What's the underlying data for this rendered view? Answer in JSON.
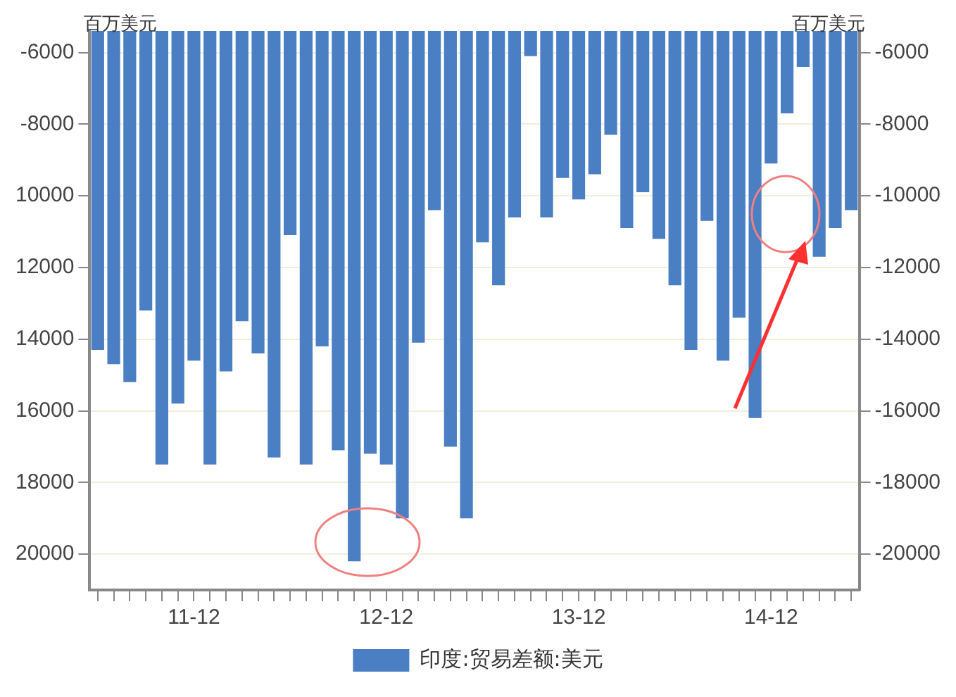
{
  "chart_data": {
    "type": "bar",
    "ylabel": "百万美元",
    "y2label": "百万美元",
    "categories": [
      null,
      null,
      null,
      null,
      null,
      null,
      "11-12",
      null,
      null,
      null,
      null,
      null,
      null,
      null,
      null,
      null,
      null,
      null,
      "12-12",
      null,
      null,
      null,
      null,
      null,
      null,
      null,
      null,
      null,
      null,
      null,
      "13-12",
      null,
      null,
      null,
      null,
      null,
      null,
      null,
      null,
      null,
      null,
      null,
      "14-12",
      null,
      null,
      null,
      null,
      null
    ],
    "series": [
      {
        "name": "印度:贸易差额:美元",
        "color": "#4a7fc4",
        "values": [
          -14300,
          -14700,
          -15200,
          -13200,
          -17500,
          -15800,
          -14600,
          -17500,
          -14900,
          -13500,
          -14400,
          -17300,
          -11100,
          -17500,
          -14200,
          -17100,
          -20200,
          -17200,
          -17500,
          -19000,
          -14100,
          -10400,
          -17000,
          -19000,
          -11300,
          -12500,
          -10600,
          -6100,
          -10600,
          -9500,
          -10100,
          -9400,
          -8300,
          -10900,
          -9900,
          -11200,
          -12500,
          -14300,
          -10700,
          -14600,
          -13400,
          -16200,
          -9100,
          -7700,
          -6400,
          -11700,
          -10900,
          -10400
        ]
      }
    ],
    "ylim": [
      -21000,
      -5400
    ],
    "yticks": [
      -6000,
      -8000,
      {
        "value": -10000,
        "label": "10000"
      },
      {
        "value": -12000,
        "label": "12000"
      },
      {
        "value": -14000,
        "label": "14000"
      },
      {
        "value": -16000,
        "label": "16000"
      },
      {
        "value": -18000,
        "label": "18000"
      },
      {
        "value": -20000,
        "label": "20000"
      }
    ],
    "y2lim": [
      -21000,
      -5400
    ],
    "y2ticks": [
      -6000,
      -8000,
      -10000,
      -12000,
      -14000,
      -16000,
      -18000,
      -20000
    ],
    "grid": "y",
    "legend": "bottom"
  }
}
